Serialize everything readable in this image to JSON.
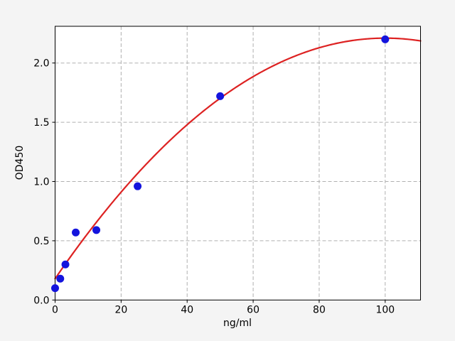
{
  "figure": {
    "background_color": "#f4f4f4",
    "plot_background_color": "#ffffff",
    "spine_color": "#000000",
    "tick_color": "#000000",
    "text_color": "#000000"
  },
  "chart_data": {
    "type": "scatter",
    "title": "",
    "xlabel": "ng/ml",
    "ylabel": "OD450",
    "xlim": [
      0,
      110.7
    ],
    "ylim": [
      0,
      2.31
    ],
    "xticks": [
      0,
      20,
      40,
      60,
      80,
      100
    ],
    "xtick_labels": [
      "0",
      "20",
      "40",
      "60",
      "80",
      "100"
    ],
    "yticks": [
      0,
      0.5,
      1.0,
      1.5,
      2.0
    ],
    "ytick_labels": [
      "0.0",
      "0.5",
      "1.0",
      "1.5",
      "2.0"
    ],
    "grid": {
      "show": true,
      "color": "#b0b0b0",
      "style": "dashed"
    },
    "legend": {
      "show": false
    },
    "series": [
      {
        "name": "standard-points",
        "type": "scatter",
        "color": "#1414dd",
        "x": [
          0,
          1.5625,
          3.125,
          6.25,
          12.5,
          25,
          50,
          100
        ],
        "y": [
          0.1,
          0.18,
          0.3,
          0.57,
          0.59,
          0.96,
          1.72,
          2.2
        ]
      },
      {
        "name": "fit-curve",
        "type": "line",
        "color": "#dd2222",
        "model": "quadratic",
        "coefficients": {
          "a": 0.18,
          "b": 0.0406,
          "c": -0.000203
        },
        "x_range": [
          0,
          110.7
        ]
      }
    ]
  }
}
